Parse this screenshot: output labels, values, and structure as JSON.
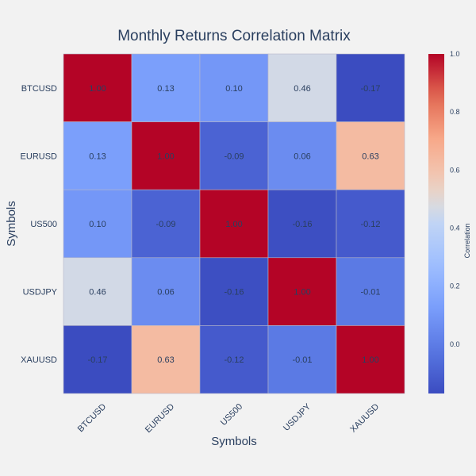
{
  "chart_data": {
    "type": "heatmap",
    "title": "Monthly Returns Correlation Matrix",
    "xlabel": "Symbols",
    "ylabel": "Symbols",
    "x_categories": [
      "BTCUSD",
      "EURUSD",
      "US500",
      "USDJPY",
      "XAUUSD"
    ],
    "y_categories": [
      "BTCUSD",
      "EURUSD",
      "US500",
      "USDJPY",
      "XAUUSD"
    ],
    "values": [
      [
        1.0,
        0.13,
        0.1,
        0.46,
        -0.17
      ],
      [
        0.13,
        1.0,
        -0.09,
        0.06,
        0.63
      ],
      [
        0.1,
        -0.09,
        1.0,
        -0.16,
        -0.12
      ],
      [
        0.46,
        0.06,
        -0.16,
        1.0,
        -0.01
      ],
      [
        -0.17,
        0.63,
        -0.12,
        -0.01,
        1.0
      ]
    ],
    "cell_labels": [
      [
        "1.00",
        "0.13",
        "0.10",
        "0.46",
        "-0.17"
      ],
      [
        "0.13",
        "1.00",
        "-0.09",
        "0.06",
        "0.63"
      ],
      [
        "0.10",
        "-0.09",
        "1.00",
        "-0.16",
        "-0.12"
      ],
      [
        "0.46",
        "0.06",
        "-0.16",
        "1.00",
        "-0.01"
      ],
      [
        "-0.17",
        "0.63",
        "-0.12",
        "-0.01",
        "1.00"
      ]
    ],
    "colorscale": "coolwarm",
    "zmin": -0.17,
    "zmax": 1.0,
    "colorbar": {
      "title": "Correlation",
      "ticks": [
        0,
        0.2,
        0.4,
        0.6,
        0.8,
        1
      ],
      "tick_labels": [
        "0.0",
        "0.2",
        "0.4",
        "0.6",
        "0.8",
        "1.0"
      ]
    },
    "colors": {
      "background": "#f2f2f2",
      "text": "#2a3f5f"
    }
  }
}
